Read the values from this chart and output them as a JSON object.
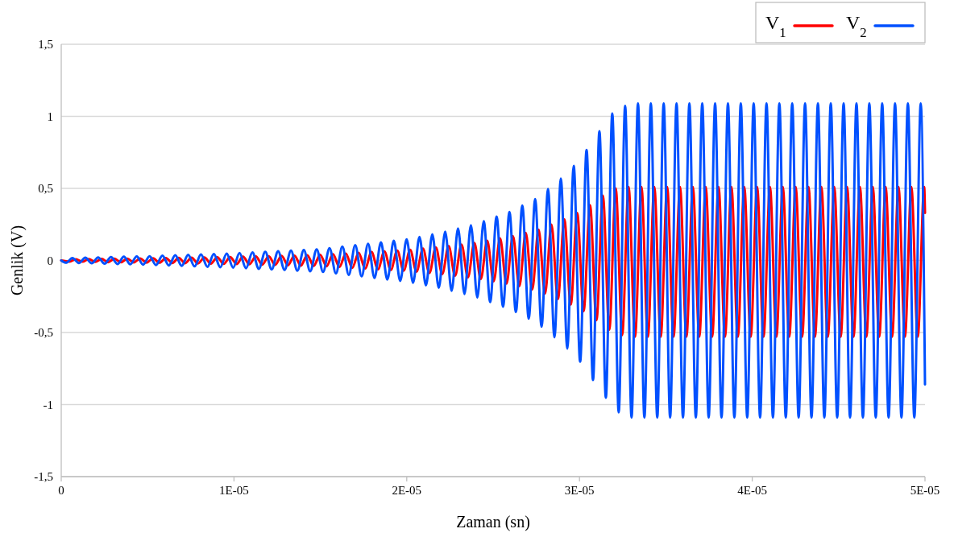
{
  "chart_data": {
    "type": "line",
    "xlabel": "Zaman (sn)",
    "ylabel": "Genlik (V)",
    "xlim": [
      0,
      5e-05
    ],
    "xticks": [
      0,
      {
        "value": 1e-05,
        "label": "1E-05"
      },
      {
        "value": 2e-05,
        "label": "2E-05"
      },
      {
        "value": 3e-05,
        "label": "3E-05"
      },
      {
        "value": 4e-05,
        "label": "4E-05"
      },
      {
        "value": 5e-05,
        "label": "5E-05"
      }
    ],
    "ylim": [
      -1.5,
      1.5
    ],
    "yticks": [
      {
        "value": -1.5,
        "label": "-1,5"
      },
      -1,
      {
        "value": -0.5,
        "label": "-0,5"
      },
      0,
      {
        "value": 0.5,
        "label": "0,5"
      },
      1,
      {
        "value": 1.5,
        "label": "1,5"
      }
    ],
    "grid": "y",
    "legend": "top right",
    "marker": "none",
    "line_style": "solid",
    "series": [
      {
        "name": "V$_{1}$",
        "color": "#ff0000",
        "x": [
          0,
          4.78e-07,
          8.5e-07,
          1.222e-06,
          1.594e-06,
          1.966e-06,
          2.338e-06,
          2.71e-06,
          3.082e-06,
          3.454e-06,
          3.826e-06,
          4.198e-06,
          4.57e-06,
          4.942e-06,
          5.314e-06,
          5.686e-06,
          6.058e-06,
          6.43e-06,
          6.802e-06,
          7.174e-06,
          7.546e-06,
          7.918e-06,
          8.29e-06,
          8.662e-06,
          9.034e-06,
          9.406e-06,
          9.778e-06,
          1.015e-05,
          1.0522e-05,
          1.0894e-05,
          1.1266e-05,
          1.1638e-05,
          1.201e-05,
          1.2382e-05,
          1.2754e-05,
          1.3126e-05,
          1.3498e-05,
          1.387e-05,
          1.4242e-05,
          1.4614e-05,
          1.4986e-05,
          1.5358e-05,
          1.573e-05,
          1.6102e-05,
          1.6474e-05,
          1.6846e-05,
          1.7218e-05,
          1.759e-05,
          1.7962e-05,
          1.8334e-05,
          1.8706e-05,
          1.9078e-05,
          1.945e-05,
          1.9822e-05,
          2.0194e-05,
          2.0566e-05,
          2.0938e-05,
          2.131e-05,
          2.1682e-05,
          2.2054e-05,
          2.2426e-05,
          2.2798e-05,
          2.317e-05,
          2.3542e-05,
          2.3914e-05,
          2.4286e-05,
          2.4658e-05,
          2.503e-05,
          2.5402e-05,
          2.5774e-05,
          2.6146e-05,
          2.6518e-05,
          2.689e-05,
          2.7262e-05,
          2.7634e-05,
          2.8006e-05,
          2.8378e-05,
          2.875e-05,
          2.9122e-05,
          2.9494e-05,
          2.9866e-05,
          3.0238e-05,
          3.061e-05,
          3.0982e-05,
          3.1354e-05,
          3.1726e-05,
          3.2098e-05,
          3.247e-05,
          3.2842e-05,
          3.3214e-05,
          3.3586e-05,
          3.3958e-05,
          3.433e-05,
          3.4702e-05,
          3.5074e-05,
          3.5446e-05,
          3.5818e-05,
          3.619e-05,
          3.6562e-05,
          3.6934e-05,
          3.7306e-05,
          3.7678e-05,
          3.805e-05,
          3.8422e-05,
          3.8794e-05,
          3.9166e-05,
          3.9538e-05,
          3.991e-05,
          4.0282e-05,
          4.0654e-05,
          4.1026e-05,
          4.1398e-05,
          4.177e-05,
          4.2142e-05,
          4.2514e-05,
          4.2886e-05,
          4.3258e-05,
          4.363e-05,
          4.4002e-05,
          4.4374e-05,
          4.4746e-05,
          4.5118e-05,
          4.549e-05,
          4.5862e-05,
          4.6234e-05,
          4.6606e-05,
          4.6978e-05,
          4.735e-05,
          4.7722e-05,
          4.8094e-05,
          4.8466e-05,
          4.8838e-05,
          4.921e-05,
          4.9582e-05,
          4.9954e-05,
          5e-05
        ],
        "values": [
          0,
          -0.008,
          0.009,
          -0.009,
          0.01,
          -0.01,
          0.011,
          -0.012,
          0.012,
          -0.013,
          0.013,
          -0.014,
          0.014,
          -0.015,
          0.015,
          -0.016,
          0.017,
          -0.018,
          0.018,
          -0.019,
          0.02,
          -0.021,
          0.021,
          -0.022,
          0.023,
          -0.024,
          0.024,
          -0.025,
          0.026,
          -0.027,
          0.028,
          -0.029,
          0.03,
          -0.031,
          0.032,
          -0.033,
          0.034,
          -0.036,
          0.037,
          -0.038,
          0.039,
          -0.04,
          0.043,
          -0.045,
          0.048,
          -0.051,
          0.053,
          -0.056,
          0.058,
          -0.061,
          0.063,
          -0.066,
          0.069,
          -0.071,
          0.074,
          -0.078,
          0.082,
          -0.087,
          0.091,
          -0.095,
          0.1,
          -0.106,
          0.111,
          -0.117,
          0.122,
          -0.129,
          0.137,
          -0.145,
          0.153,
          -0.161,
          0.169,
          -0.179,
          0.191,
          -0.202,
          0.213,
          -0.23,
          0.248,
          -0.267,
          0.285,
          -0.306,
          0.329,
          -0.352,
          0.384,
          -0.415,
          0.45,
          -0.48,
          0.5,
          -0.518,
          0.51,
          -0.53,
          0.51,
          -0.53,
          0.51,
          -0.53,
          0.51,
          -0.53,
          0.51,
          -0.53,
          0.51,
          -0.53,
          0.51,
          -0.53,
          0.51,
          -0.53,
          0.51,
          -0.53,
          0.51,
          -0.53,
          0.51,
          -0.53,
          0.51,
          -0.53,
          0.51,
          -0.53,
          0.51,
          -0.53,
          0.51,
          -0.53,
          0.51,
          -0.53,
          0.51,
          -0.53,
          0.51,
          -0.53,
          0.51,
          -0.53,
          0.51,
          -0.53,
          0.51,
          -0.53,
          0.51,
          -0.53,
          0.51,
          -0.53,
          0.51,
          0.33
        ]
      },
      {
        "name": "V$_{2}$",
        "color": "#0050ff",
        "x": [
          0,
          2.78e-07,
          6.5e-07,
          1.022e-06,
          1.394e-06,
          1.766e-06,
          2.138e-06,
          2.51e-06,
          2.882e-06,
          3.254e-06,
          3.626e-06,
          3.998e-06,
          4.37e-06,
          4.742e-06,
          5.114e-06,
          5.486e-06,
          5.858e-06,
          6.23e-06,
          6.602e-06,
          6.974e-06,
          7.346e-06,
          7.718e-06,
          8.09e-06,
          8.462e-06,
          8.834e-06,
          9.206e-06,
          9.578e-06,
          9.95e-06,
          1.0322e-05,
          1.0694e-05,
          1.1066e-05,
          1.1438e-05,
          1.181e-05,
          1.2182e-05,
          1.2554e-05,
          1.2926e-05,
          1.3298e-05,
          1.367e-05,
          1.4042e-05,
          1.4414e-05,
          1.4786e-05,
          1.5158e-05,
          1.553e-05,
          1.5902e-05,
          1.6274e-05,
          1.6646e-05,
          1.7018e-05,
          1.739e-05,
          1.7762e-05,
          1.8134e-05,
          1.8506e-05,
          1.8878e-05,
          1.925e-05,
          1.9622e-05,
          1.9994e-05,
          2.0366e-05,
          2.0738e-05,
          2.111e-05,
          2.1482e-05,
          2.1854e-05,
          2.2226e-05,
          2.2598e-05,
          2.297e-05,
          2.3342e-05,
          2.3714e-05,
          2.4086e-05,
          2.4458e-05,
          2.483e-05,
          2.5202e-05,
          2.5574e-05,
          2.5946e-05,
          2.6318e-05,
          2.669e-05,
          2.7062e-05,
          2.7434e-05,
          2.7806e-05,
          2.8178e-05,
          2.855e-05,
          2.8922e-05,
          2.9294e-05,
          2.9666e-05,
          3.0038e-05,
          3.041e-05,
          3.0782e-05,
          3.1154e-05,
          3.1526e-05,
          3.1898e-05,
          3.227e-05,
          3.2642e-05,
          3.3014e-05,
          3.3386e-05,
          3.3758e-05,
          3.413e-05,
          3.4502e-05,
          3.4874e-05,
          3.5246e-05,
          3.5618e-05,
          3.599e-05,
          3.6362e-05,
          3.6734e-05,
          3.7106e-05,
          3.7478e-05,
          3.785e-05,
          3.8222e-05,
          3.8594e-05,
          3.8966e-05,
          3.9338e-05,
          3.971e-05,
          4.0082e-05,
          4.0454e-05,
          4.0826e-05,
          4.1198e-05,
          4.157e-05,
          4.1942e-05,
          4.2314e-05,
          4.2686e-05,
          4.3058e-05,
          4.343e-05,
          4.3802e-05,
          4.4174e-05,
          4.4546e-05,
          4.4918e-05,
          4.529e-05,
          4.5662e-05,
          4.6034e-05,
          4.6406e-05,
          4.6778e-05,
          4.715e-05,
          4.7522e-05,
          4.7894e-05,
          4.8266e-05,
          4.8638e-05,
          4.901e-05,
          4.9382e-05,
          4.9754e-05,
          5e-05
        ],
        "values": [
          0,
          -0.016,
          0.017,
          -0.018,
          0.019,
          -0.02,
          0.021,
          -0.023,
          0.024,
          -0.025,
          0.026,
          -0.027,
          0.028,
          -0.029,
          0.03,
          -0.032,
          0.033,
          -0.035,
          0.036,
          -0.038,
          0.039,
          -0.041,
          0.042,
          -0.044,
          0.045,
          -0.047,
          0.048,
          -0.05,
          0.052,
          -0.054,
          0.056,
          -0.058,
          0.06,
          -0.062,
          0.064,
          -0.066,
          0.068,
          -0.071,
          0.073,
          -0.075,
          0.077,
          -0.08,
          0.085,
          -0.09,
          0.096,
          -0.101,
          0.106,
          -0.111,
          0.116,
          -0.121,
          0.126,
          -0.132,
          0.137,
          -0.142,
          0.147,
          -0.155,
          0.164,
          -0.173,
          0.181,
          -0.19,
          0.2,
          -0.211,
          0.222,
          -0.233,
          0.244,
          -0.257,
          0.273,
          -0.289,
          0.305,
          -0.321,
          0.337,
          -0.358,
          0.381,
          -0.404,
          0.426,
          -0.46,
          0.496,
          -0.533,
          0.569,
          -0.612,
          0.657,
          -0.703,
          0.767,
          -0.83,
          0.897,
          -0.953,
          1.02,
          -1.054,
          1.072,
          -1.09,
          1.09,
          -1.09,
          1.09,
          -1.09,
          1.09,
          -1.09,
          1.09,
          -1.09,
          1.09,
          -1.09,
          1.09,
          -1.09,
          1.09,
          -1.09,
          1.09,
          -1.09,
          1.09,
          -1.09,
          1.09,
          -1.09,
          1.09,
          -1.09,
          1.09,
          -1.09,
          1.09,
          -1.09,
          1.09,
          -1.09,
          1.09,
          -1.09,
          1.09,
          -1.09,
          1.09,
          -1.09,
          1.09,
          -1.09,
          1.09,
          -1.09,
          1.09,
          -1.09,
          1.09,
          -1.09,
          1.09,
          -1.09,
          1.09,
          -0.86
        ]
      }
    ]
  }
}
